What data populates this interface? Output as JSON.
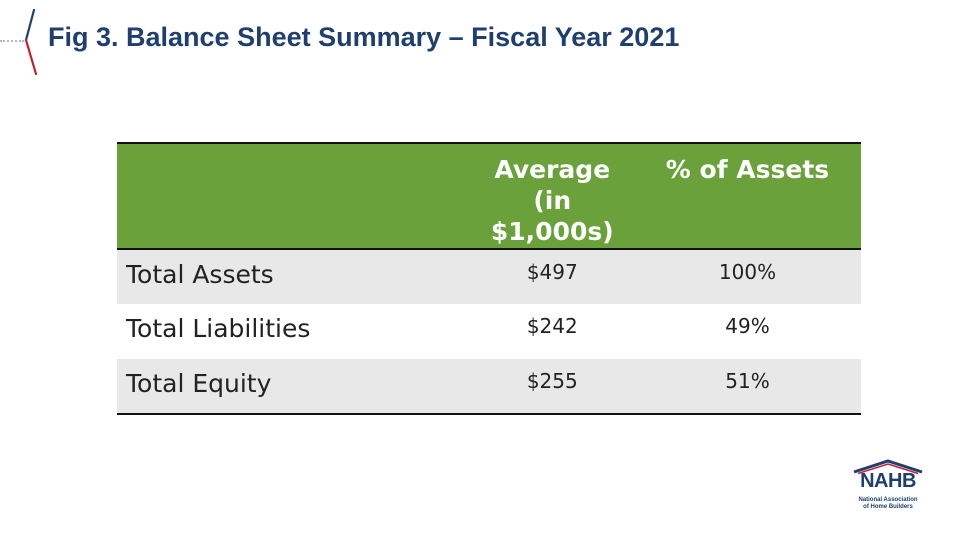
{
  "slide": {
    "title": "Fig 3. Balance Sheet Summary – Fiscal Year 2021"
  },
  "table": {
    "headers": [
      "",
      "Average\n(in $1,000s)",
      "% of Assets"
    ],
    "rows": [
      {
        "label": "Total Assets",
        "average": "$497",
        "percent": "100%"
      },
      {
        "label": "Total Liabilities",
        "average": "$242",
        "percent": "49%"
      },
      {
        "label": "Total Equity",
        "average": "$255",
        "percent": "51%"
      }
    ]
  },
  "logo": {
    "wordmark": "NAHB",
    "line1": "National Association",
    "line2": "of Home Builders"
  },
  "colors": {
    "title": "#1f3f6e",
    "header_fill": "#6aa13b",
    "row_shade": "#e8e8e8",
    "accent_red": "#c0202e"
  }
}
